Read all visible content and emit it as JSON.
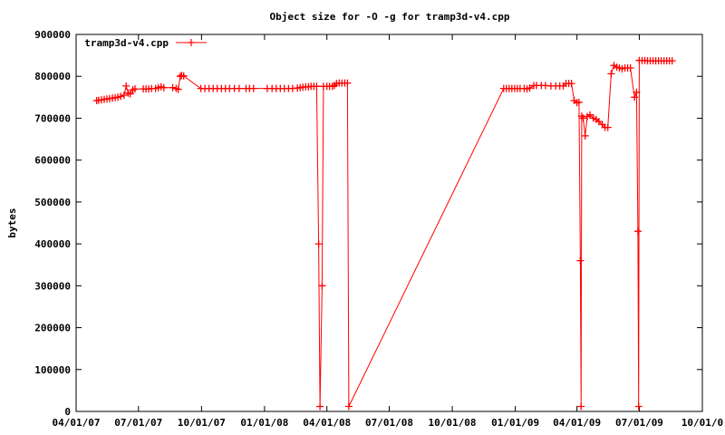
{
  "chart_data": {
    "type": "line",
    "title": "Object size for -O -g for tramp3d-v4.cpp",
    "xlabel": "",
    "ylabel": "bytes",
    "x_is_date": true,
    "xlim": [
      "2007-04-01",
      "2009-10-01"
    ],
    "ylim": [
      0,
      900000
    ],
    "xticks": [
      {
        "date": "2007-04-01",
        "label": "04/01/07"
      },
      {
        "date": "2007-07-01",
        "label": "07/01/07"
      },
      {
        "date": "2007-10-01",
        "label": "10/01/07"
      },
      {
        "date": "2008-01-01",
        "label": "01/01/08"
      },
      {
        "date": "2008-04-01",
        "label": "04/01/08"
      },
      {
        "date": "2008-07-01",
        "label": "07/01/08"
      },
      {
        "date": "2008-10-01",
        "label": "10/01/08"
      },
      {
        "date": "2009-01-01",
        "label": "01/01/09"
      },
      {
        "date": "2009-04-01",
        "label": "04/01/09"
      },
      {
        "date": "2009-07-01",
        "label": "07/01/09"
      },
      {
        "date": "2009-10-01",
        "label": "10/01/0"
      }
    ],
    "yticks": [
      {
        "value": 0,
        "label": "0"
      },
      {
        "value": 100000,
        "label": "100000"
      },
      {
        "value": 200000,
        "label": "200000"
      },
      {
        "value": 300000,
        "label": "300000"
      },
      {
        "value": 400000,
        "label": "400000"
      },
      {
        "value": 500000,
        "label": "500000"
      },
      {
        "value": 600000,
        "label": "600000"
      },
      {
        "value": 700000,
        "label": "700000"
      },
      {
        "value": 800000,
        "label": "800000"
      },
      {
        "value": 900000,
        "label": "900000"
      }
    ],
    "grid": false,
    "legend_position": "top-left",
    "colors": {
      "series": "#ff0000",
      "axis": "#000000"
    },
    "series": [
      {
        "name": "tramp3d-v4.cpp",
        "marker": "plus",
        "points": [
          [
            "2007-05-01",
            742000
          ],
          [
            "2007-05-04",
            743000
          ],
          [
            "2007-05-08",
            744000
          ],
          [
            "2007-05-12",
            745000
          ],
          [
            "2007-05-16",
            746000
          ],
          [
            "2007-05-20",
            747000
          ],
          [
            "2007-05-24",
            748000
          ],
          [
            "2007-05-28",
            749000
          ],
          [
            "2007-06-01",
            750000
          ],
          [
            "2007-06-05",
            752000
          ],
          [
            "2007-06-10",
            755000
          ],
          [
            "2007-06-13",
            777000
          ],
          [
            "2007-06-16",
            760000
          ],
          [
            "2007-06-19",
            758000
          ],
          [
            "2007-06-23",
            768000
          ],
          [
            "2007-06-26",
            770000
          ],
          [
            "2007-07-08",
            770000
          ],
          [
            "2007-07-12",
            770000
          ],
          [
            "2007-07-16",
            770000
          ],
          [
            "2007-07-20",
            771000
          ],
          [
            "2007-07-26",
            771000
          ],
          [
            "2007-07-30",
            773000
          ],
          [
            "2007-08-03",
            775000
          ],
          [
            "2007-08-07",
            773000
          ],
          [
            "2007-08-20",
            773000
          ],
          [
            "2007-08-25",
            771000
          ],
          [
            "2007-08-28",
            769000
          ],
          [
            "2007-08-31",
            800000
          ],
          [
            "2007-09-02",
            802000
          ],
          [
            "2007-09-05",
            801000
          ],
          [
            "2007-09-30",
            771000
          ],
          [
            "2007-10-06",
            771000
          ],
          [
            "2007-10-12",
            771000
          ],
          [
            "2007-10-18",
            771000
          ],
          [
            "2007-10-24",
            771000
          ],
          [
            "2007-10-30",
            771000
          ],
          [
            "2007-11-05",
            771000
          ],
          [
            "2007-11-11",
            771000
          ],
          [
            "2007-11-18",
            771000
          ],
          [
            "2007-11-25",
            771000
          ],
          [
            "2007-12-05",
            771000
          ],
          [
            "2007-12-10",
            771000
          ],
          [
            "2007-12-16",
            771000
          ],
          [
            "2008-01-05",
            771000
          ],
          [
            "2008-01-12",
            771000
          ],
          [
            "2008-01-18",
            771000
          ],
          [
            "2008-01-24",
            771000
          ],
          [
            "2008-01-30",
            771000
          ],
          [
            "2008-02-05",
            771000
          ],
          [
            "2008-02-11",
            771000
          ],
          [
            "2008-02-18",
            772000
          ],
          [
            "2008-02-22",
            773000
          ],
          [
            "2008-02-26",
            774000
          ],
          [
            "2008-03-01",
            775000
          ],
          [
            "2008-03-05",
            775000
          ],
          [
            "2008-03-09",
            776000
          ],
          [
            "2008-03-13",
            776000
          ],
          [
            "2008-03-17",
            776000
          ],
          [
            "2008-03-20",
            400000
          ],
          [
            "2008-03-22",
            12000
          ],
          [
            "2008-03-25",
            300000
          ],
          [
            "2008-03-27",
            776000
          ],
          [
            "2008-04-01",
            776000
          ],
          [
            "2008-04-05",
            776000
          ],
          [
            "2008-04-09",
            776000
          ],
          [
            "2008-04-12",
            778000
          ],
          [
            "2008-04-15",
            783000
          ],
          [
            "2008-04-19",
            784000
          ],
          [
            "2008-04-23",
            784000
          ],
          [
            "2008-04-27",
            784000
          ],
          [
            "2008-05-01",
            784000
          ],
          [
            "2008-05-03",
            12000
          ],
          [
            "2008-12-15",
            771000
          ],
          [
            "2008-12-19",
            771000
          ],
          [
            "2008-12-23",
            771000
          ],
          [
            "2008-12-27",
            771000
          ],
          [
            "2008-12-31",
            771000
          ],
          [
            "2009-01-04",
            771000
          ],
          [
            "2009-01-08",
            771000
          ],
          [
            "2009-01-14",
            771000
          ],
          [
            "2009-01-18",
            770000
          ],
          [
            "2009-01-22",
            772000
          ],
          [
            "2009-01-28",
            778000
          ],
          [
            "2009-02-01",
            778000
          ],
          [
            "2009-02-08",
            778000
          ],
          [
            "2009-02-14",
            778000
          ],
          [
            "2009-02-22",
            777000
          ],
          [
            "2009-03-01",
            777000
          ],
          [
            "2009-03-07",
            777000
          ],
          [
            "2009-03-12",
            777000
          ],
          [
            "2009-03-16",
            783000
          ],
          [
            "2009-03-20",
            783000
          ],
          [
            "2009-03-24",
            783000
          ],
          [
            "2009-03-28",
            742000
          ],
          [
            "2009-04-01",
            737000
          ],
          [
            "2009-04-04",
            738000
          ],
          [
            "2009-04-06",
            360000
          ],
          [
            "2009-04-07",
            12000
          ],
          [
            "2009-04-08",
            705000
          ],
          [
            "2009-04-10",
            700000
          ],
          [
            "2009-04-13",
            658000
          ],
          [
            "2009-04-16",
            704000
          ],
          [
            "2009-04-20",
            708000
          ],
          [
            "2009-04-25",
            700000
          ],
          [
            "2009-04-29",
            697000
          ],
          [
            "2009-05-03",
            692000
          ],
          [
            "2009-05-08",
            685000
          ],
          [
            "2009-05-12",
            678000
          ],
          [
            "2009-05-16",
            678000
          ],
          [
            "2009-05-21",
            806000
          ],
          [
            "2009-05-25",
            826000
          ],
          [
            "2009-05-29",
            822000
          ],
          [
            "2009-06-02",
            820000
          ],
          [
            "2009-06-06",
            818000
          ],
          [
            "2009-06-10",
            820000
          ],
          [
            "2009-06-14",
            820000
          ],
          [
            "2009-06-18",
            820000
          ],
          [
            "2009-06-24",
            750000
          ],
          [
            "2009-06-27",
            762000
          ],
          [
            "2009-06-29",
            430000
          ],
          [
            "2009-06-30",
            12000
          ],
          [
            "2009-07-01",
            838000
          ],
          [
            "2009-07-05",
            838000
          ],
          [
            "2009-07-09",
            838000
          ],
          [
            "2009-07-13",
            837000
          ],
          [
            "2009-07-17",
            837000
          ],
          [
            "2009-07-21",
            837000
          ],
          [
            "2009-07-25",
            837000
          ],
          [
            "2009-07-29",
            837000
          ],
          [
            "2009-08-02",
            837000
          ],
          [
            "2009-08-06",
            837000
          ],
          [
            "2009-08-10",
            837000
          ],
          [
            "2009-08-14",
            837000
          ],
          [
            "2009-08-18",
            837000
          ]
        ]
      }
    ]
  }
}
